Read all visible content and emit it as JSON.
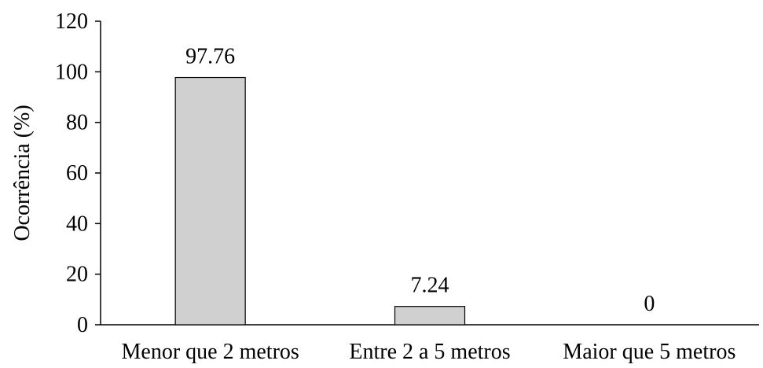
{
  "chart_data": {
    "type": "bar",
    "categories": [
      "Menor que 2 metros",
      "Entre 2 a 5 metros",
      "Maior que 5 metros"
    ],
    "values": [
      97.76,
      7.24,
      0
    ],
    "data_labels": [
      "97.76",
      "7.24",
      "0"
    ],
    "title": "",
    "xlabel": "",
    "ylabel": "Ocorrência (%)",
    "ylim": [
      0,
      120
    ],
    "yticks": [
      0,
      20,
      40,
      60,
      80,
      100,
      120
    ],
    "grid": false,
    "legend": "none",
    "bar_color": "#d0d0d0",
    "bar_edge_color": "#000000"
  }
}
